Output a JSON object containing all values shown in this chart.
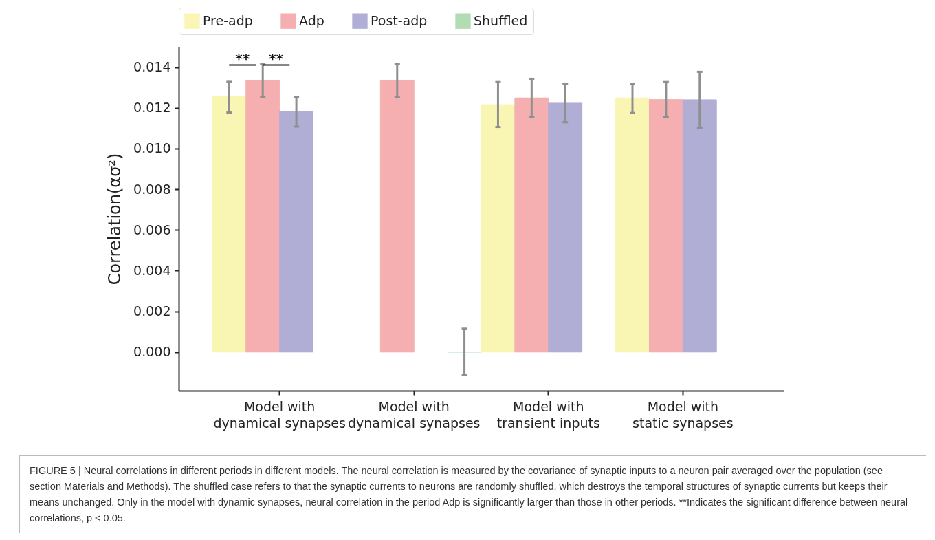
{
  "chart_data": {
    "type": "bar",
    "ylabel": "Correlation(ασ²)",
    "categories": [
      "Model with\ndynamical synapses",
      "Model with\ndynamical synapses",
      "Model with\ntransient inputs",
      "Model with\nstatic synapses"
    ],
    "series": [
      {
        "name": "Pre-adp",
        "color": "#f9f6b4",
        "values": [
          0.01255,
          null,
          0.01216,
          0.01249
        ],
        "errors": [
          [
            0.01177,
            0.01328
          ],
          null,
          [
            0.01106,
            0.01327
          ],
          [
            0.01175,
            0.01318
          ]
        ]
      },
      {
        "name": "Adp",
        "color": "#f6afb1",
        "values": [
          0.01336,
          0.01335,
          0.01249,
          0.01241
        ],
        "errors": [
          [
            0.01254,
            0.01415
          ],
          [
            0.01254,
            0.01415
          ],
          [
            0.01156,
            0.01343
          ],
          [
            0.01156,
            0.01327
          ]
        ]
      },
      {
        "name": "Post-adp",
        "color": "#b1aed6",
        "values": [
          0.01184,
          null,
          0.01223,
          0.0124
        ],
        "errors": [
          [
            0.01108,
            0.01255
          ],
          null,
          [
            0.01129,
            0.01318
          ],
          [
            0.01103,
            0.01377
          ]
        ]
      },
      {
        "name": "Shuffled",
        "color": "#b2dcb4",
        "values": [
          null,
          0.0,
          null,
          null
        ],
        "errors": [
          null,
          [
            -0.00111,
            0.00115
          ],
          null,
          null
        ]
      }
    ],
    "ylim": [
      -0.0019,
      0.015
    ],
    "yticks": [
      {
        "value": 0,
        "label": "0.000"
      },
      0.002,
      0.004,
      0.006,
      0.008,
      {
        "value": 0.01,
        "label": "0.010"
      },
      0.012,
      0.014
    ],
    "grid": false,
    "legend": "top",
    "annotations": [
      "**",
      "**",
      "FIGURE 5 | Neural correlations in different periods in different models. The neural correlation is measured by the covariance of synaptic inputs to a neuron pair averaged over the population (see section Materials and Methods). The shuffled case refers to that the synaptic currents to neurons are randomly shuffled, which destroys the temporal structures of synaptic currents but keeps their means unchanged. Only in the model with dynamic synapses, neural correlation in the period Adp is significantly larger than those in other periods. **Indicates the significant difference between neural correlations, p < 0.05."
    ]
  }
}
